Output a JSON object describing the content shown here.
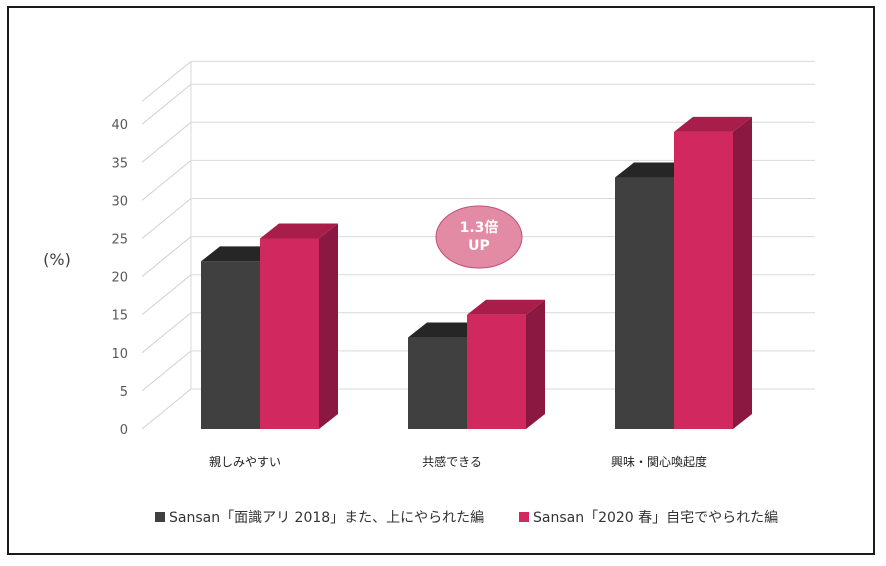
{
  "chart_data": {
    "type": "bar",
    "style": "3d-clustered-column",
    "categories": [
      "親しみやすい",
      "共感できる",
      "興味・関心喚起度"
    ],
    "series": [
      {
        "name": "Sansan「面識アリ 2018」また、上にやられた編",
        "values": [
          22,
          12,
          33
        ],
        "color": "#404040",
        "top_color": "#262626",
        "side_color": "#1f1f1f"
      },
      {
        "name": "Sansan「2020 春」自宅でやられた編",
        "values": [
          25,
          15,
          39
        ],
        "color": "#d1285f",
        "top_color": "#a81d4a",
        "side_color": "#8a1840"
      }
    ],
    "yunit": "(%)",
    "yticks": [
      "0",
      "5",
      "10",
      "15",
      "20",
      "25",
      "30",
      "35",
      "40"
    ],
    "ylim": [
      0,
      43
    ],
    "grid": true,
    "legend_position": "bottom",
    "annotation": {
      "line1": "1.3倍",
      "line2": "UP",
      "category_index": 1,
      "fill": "#e38aa5",
      "stroke": "#c0507a"
    }
  }
}
